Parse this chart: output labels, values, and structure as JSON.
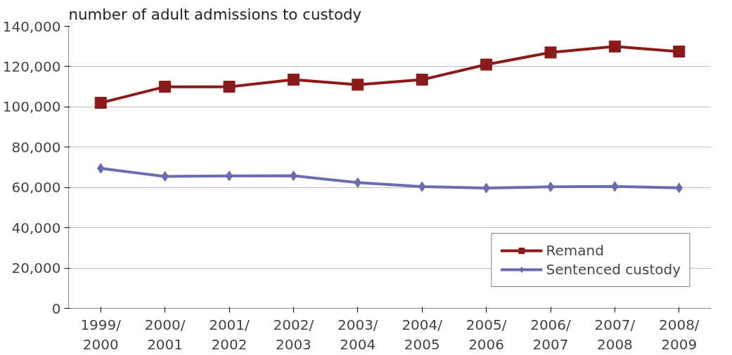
{
  "chart_data": {
    "type": "line",
    "ylabel": "number of adult admissions to custody",
    "categories": [
      "1999/\n2000",
      "2000/\n2001",
      "2001/\n2002",
      "2002/\n2003",
      "2003/\n2004",
      "2004/\n2005",
      "2005/\n2006",
      "2006/\n2007",
      "2007/\n2008",
      "2008/\n2009"
    ],
    "series": [
      {
        "name": "Remand",
        "color": "#8b1a1a",
        "marker": "square",
        "values": [
          102000,
          110000,
          110000,
          113500,
          111000,
          113500,
          121000,
          127000,
          130000,
          127500
        ]
      },
      {
        "name": "Sentenced custody",
        "color": "#6b6bb0",
        "marker": "diamond",
        "values": [
          69500,
          65500,
          65700,
          65800,
          62400,
          60400,
          59700,
          60300,
          60500,
          59800
        ]
      }
    ],
    "ylim": [
      0,
      140000
    ],
    "yticks": [
      {
        "value": 0,
        "label": "0"
      },
      {
        "value": 20000,
        "label": "20,000"
      },
      {
        "value": 40000,
        "label": "40,000"
      },
      {
        "value": 60000,
        "label": "60,000"
      },
      {
        "value": 80000,
        "label": "80,000"
      },
      {
        "value": 100000,
        "label": "100,000"
      },
      {
        "value": 120000,
        "label": "120,000"
      },
      {
        "value": 140000,
        "label": "140,000"
      }
    ],
    "grid": "y",
    "legend": "bottom right",
    "line_style": "solid"
  }
}
